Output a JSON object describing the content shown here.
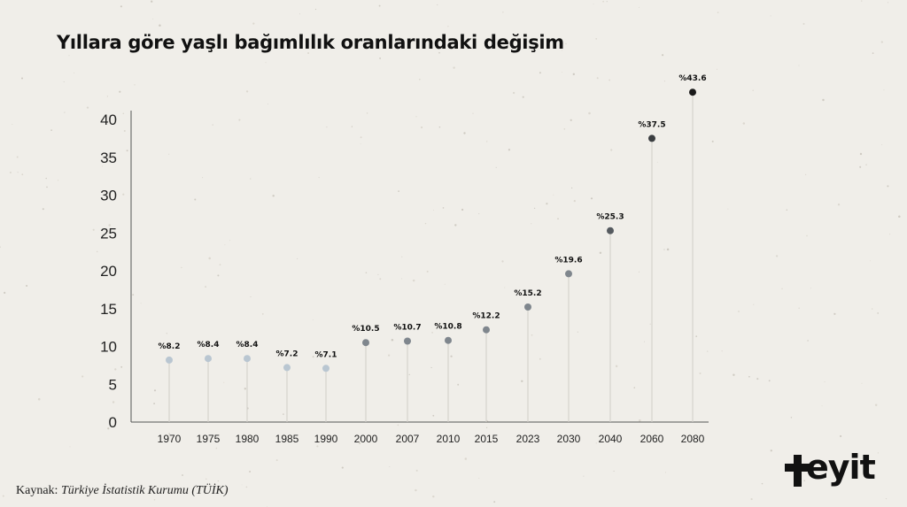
{
  "title": "Yıllara göre yaşlı bağımlılık oranlarındaki değişim",
  "source": {
    "prefix": "Kaynak: ",
    "name": "Türkiye İstatistik Kurumu (TÜİK)"
  },
  "logo": {
    "text": "eyit",
    "icon": "plus-icon",
    "color": "#111111"
  },
  "colors": {
    "background": "#f0eee9",
    "axis": "#555555",
    "stem": "#cfcdc8",
    "dot_light": "#b9c6d1",
    "dot_mid": "#7f868d",
    "dot_dark": "#1a1a1a"
  },
  "chart_data": {
    "type": "scatter",
    "title": "Yıllara göre yaşlı bağımlılık oranlarındaki değişim",
    "xlabel": "",
    "ylabel": "",
    "ylim": [
      0,
      42
    ],
    "yticks": [
      0,
      5,
      10,
      15,
      20,
      25,
      30,
      35,
      40
    ],
    "grid": false,
    "legend": "none",
    "categories": [
      "1970",
      "1975",
      "1980",
      "1985",
      "1990",
      "2000",
      "2007",
      "2010",
      "2015",
      "2023",
      "2030",
      "2040",
      "2060",
      "2080"
    ],
    "values": [
      8.2,
      8.4,
      8.4,
      7.2,
      7.1,
      10.5,
      10.7,
      10.8,
      12.2,
      15.2,
      19.6,
      25.3,
      37.5,
      43.6
    ],
    "labels": [
      "%8.2",
      "%8.4",
      "%8.4",
      "%7.2",
      "%7.1",
      "%10.5",
      "%10.7",
      "%10.8",
      "%12.2",
      "%15.2",
      "%19.6",
      "%25.3",
      "%37.5",
      "%43.6"
    ]
  }
}
